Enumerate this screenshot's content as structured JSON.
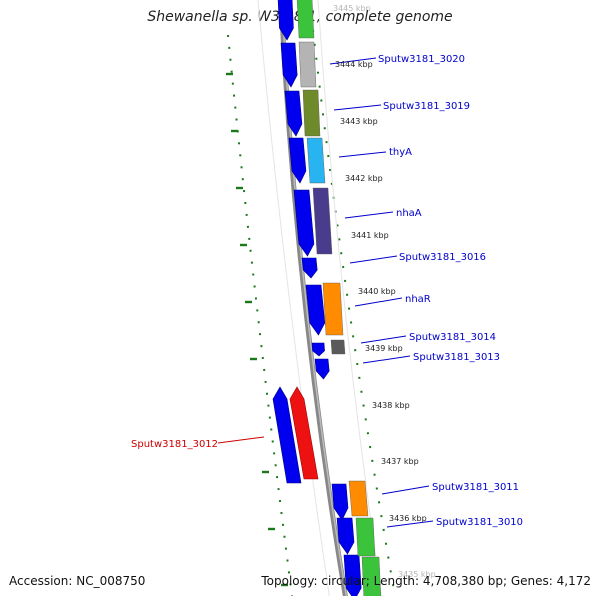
{
  "title": "Shewanella sp. W3-18-1, complete genome",
  "footer": {
    "accession": "Accession: NC_008750",
    "topology": "Topology: circular; Length: 4,708,380 bp; Genes: 4,172"
  },
  "colors": {
    "cds_arrow": "#0000ee",
    "label_blue": "#0000cc",
    "label_red": "#cc0000",
    "backbone": "#888888",
    "gc_skew_dots": "#1a7a1a"
  },
  "kbp_ticks": [
    {
      "text": "3445 kbp",
      "faded": true
    },
    {
      "text": "3444 kbp"
    },
    {
      "text": "3443 kbp"
    },
    {
      "text": "3442 kbp"
    },
    {
      "text": "3441 kbp"
    },
    {
      "text": "3440 kbp"
    },
    {
      "text": "3439 kbp"
    },
    {
      "text": "3438 kbp"
    },
    {
      "text": "3437 kbp"
    },
    {
      "text": "3436 kbp"
    },
    {
      "text": "3435 kbp",
      "faded": true
    }
  ],
  "gene_labels": [
    {
      "text": "Sputw3181_3020",
      "color": "blue"
    },
    {
      "text": "Sputw3181_3019",
      "color": "blue"
    },
    {
      "text": "thyA",
      "color": "blue"
    },
    {
      "text": "nhaA",
      "color": "blue"
    },
    {
      "text": "Sputw3181_3016",
      "color": "blue"
    },
    {
      "text": "nhaR",
      "color": "blue"
    },
    {
      "text": "Sputw3181_3014",
      "color": "blue"
    },
    {
      "text": "Sputw3181_3013",
      "color": "blue"
    },
    {
      "text": "Sputw3181_3012",
      "color": "red"
    },
    {
      "text": "Sputw3181_3011",
      "color": "blue"
    },
    {
      "text": "Sputw3181_3010",
      "color": "blue"
    }
  ],
  "cog_colors": [
    "#3cc33c",
    "#b4b4b4",
    "#6e8a2a",
    "#28b4f0",
    "#4a3c8c",
    "#ff8c00",
    "#5a5a5a",
    "#3cc33c"
  ]
}
